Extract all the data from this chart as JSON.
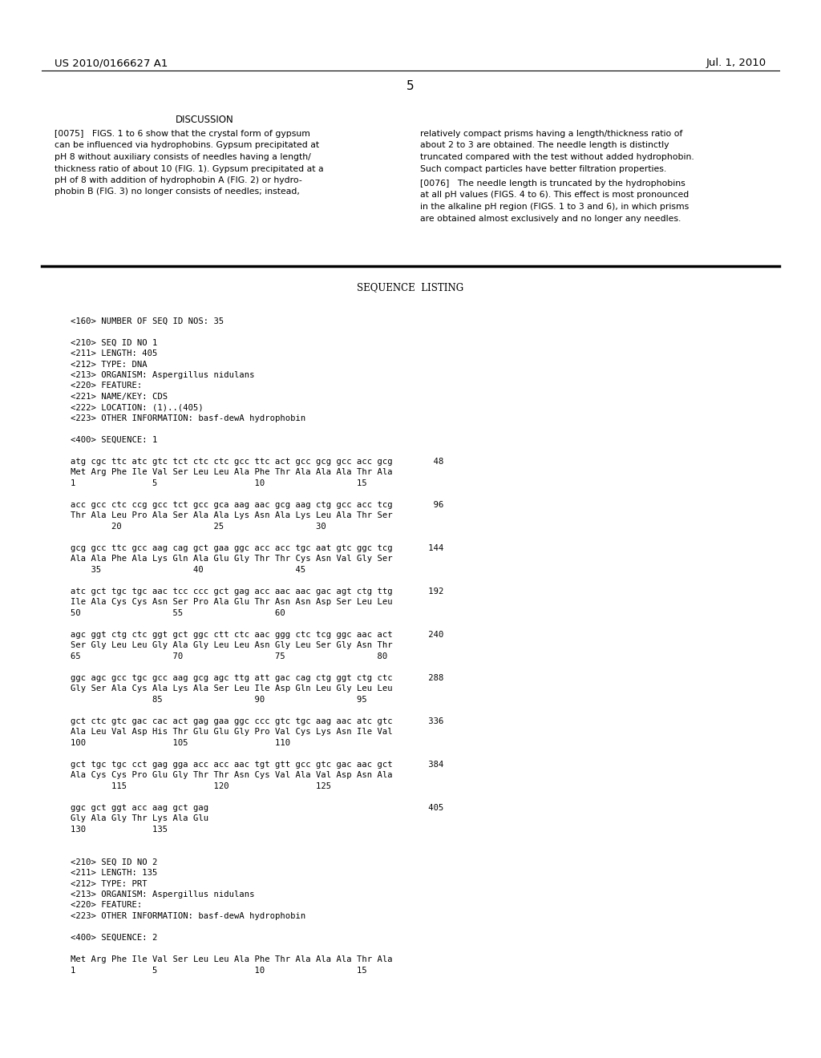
{
  "page_num": "5",
  "header_left": "US 2010/0166627 A1",
  "header_right": "Jul. 1, 2010",
  "background": "#ffffff",
  "text_color": "#000000",
  "discussion_title": "DISCUSSION",
  "para_left_lines": [
    "[0075]   FIGS. 1 to 6 show that the crystal form of gypsum",
    "can be influenced via hydrophobins. Gypsum precipitated at",
    "pH 8 without auxiliary consists of needles having a length/",
    "thickness ratio of about 10 (FIG. 1). Gypsum precipitated at a",
    "pH of 8 with addition of hydrophobin A (FIG. 2) or hydro-",
    "phobin B (FIG. 3) no longer consists of needles; instead,"
  ],
  "para_right1_lines": [
    "relatively compact prisms having a length/thickness ratio of",
    "about 2 to 3 are obtained. The needle length is distinctly",
    "truncated compared with the test without added hydrophobin.",
    "Such compact particles have better filtration properties."
  ],
  "para_right2_lines": [
    "[0076]   The needle length is truncated by the hydrophobins",
    "at all pH values (FIGS. 4 to 6). This effect is most pronounced",
    "in the alkaline pH region (FIGS. 1 to 3 and 6), in which prisms",
    "are obtained almost exclusively and no longer any needles."
  ],
  "seq_listing_title": "SEQUENCE  LISTING",
  "seq_lines": [
    "",
    "<160> NUMBER OF SEQ ID NOS: 35",
    "",
    "<210> SEQ ID NO 1",
    "<211> LENGTH: 405",
    "<212> TYPE: DNA",
    "<213> ORGANISM: Aspergillus nidulans",
    "<220> FEATURE:",
    "<221> NAME/KEY: CDS",
    "<222> LOCATION: (1)..(405)",
    "<223> OTHER INFORMATION: basf-dewA hydrophobin",
    "",
    "<400> SEQUENCE: 1",
    "",
    "atg cgc ttc atc gtc tct ctc ctc gcc ttc act gcc gcg gcc acc gcg        48",
    "Met Arg Phe Ile Val Ser Leu Leu Ala Phe Thr Ala Ala Ala Thr Ala",
    "1               5                   10                  15",
    "",
    "acc gcc ctc ccg gcc tct gcc gca aag aac gcg aag ctg gcc acc tcg        96",
    "Thr Ala Leu Pro Ala Ser Ala Ala Lys Asn Ala Lys Leu Ala Thr Ser",
    "        20                  25                  30",
    "",
    "gcg gcc ttc gcc aag cag gct gaa ggc acc acc tgc aat gtc ggc tcg       144",
    "Ala Ala Phe Ala Lys Gln Ala Glu Gly Thr Thr Cys Asn Val Gly Ser",
    "    35                  40                  45",
    "",
    "atc gct tgc tgc aac tcc ccc gct gag acc aac aac gac agt ctg ttg       192",
    "Ile Ala Cys Cys Asn Ser Pro Ala Glu Thr Asn Asn Asp Ser Leu Leu",
    "50                  55                  60",
    "",
    "agc ggt ctg ctc ggt gct ggc ctt ctc aac ggg ctc tcg ggc aac act       240",
    "Ser Gly Leu Leu Gly Ala Gly Leu Leu Asn Gly Leu Ser Gly Asn Thr",
    "65                  70                  75                  80",
    "",
    "ggc agc gcc tgc gcc aag gcg agc ttg att gac cag ctg ggt ctg ctc       288",
    "Gly Ser Ala Cys Ala Lys Ala Ser Leu Ile Asp Gln Leu Gly Leu Leu",
    "                85                  90                  95",
    "",
    "gct ctc gtc gac cac act gag gaa ggc ccc gtc tgc aag aac atc gtc       336",
    "Ala Leu Val Asp His Thr Glu Glu Gly Pro Val Cys Lys Asn Ile Val",
    "100                 105                 110",
    "",
    "gct tgc tgc cct gag gga acc acc aac tgt gtt gcc gtc gac aac gct       384",
    "Ala Cys Cys Pro Glu Gly Thr Thr Asn Cys Val Ala Val Asp Asn Ala",
    "        115                 120                 125",
    "",
    "ggc gct ggt acc aag gct gag                                           405",
    "Gly Ala Gly Thr Lys Ala Glu",
    "130             135",
    "",
    "",
    "<210> SEQ ID NO 2",
    "<211> LENGTH: 135",
    "<212> TYPE: PRT",
    "<213> ORGANISM: Aspergillus nidulans",
    "<220> FEATURE:",
    "<223> OTHER INFORMATION: basf-dewA hydrophobin",
    "",
    "<400> SEQUENCE: 2",
    "",
    "Met Arg Phe Ile Val Ser Leu Leu Ala Phe Thr Ala Ala Ala Thr Ala",
    "1               5                   10                  15"
  ]
}
